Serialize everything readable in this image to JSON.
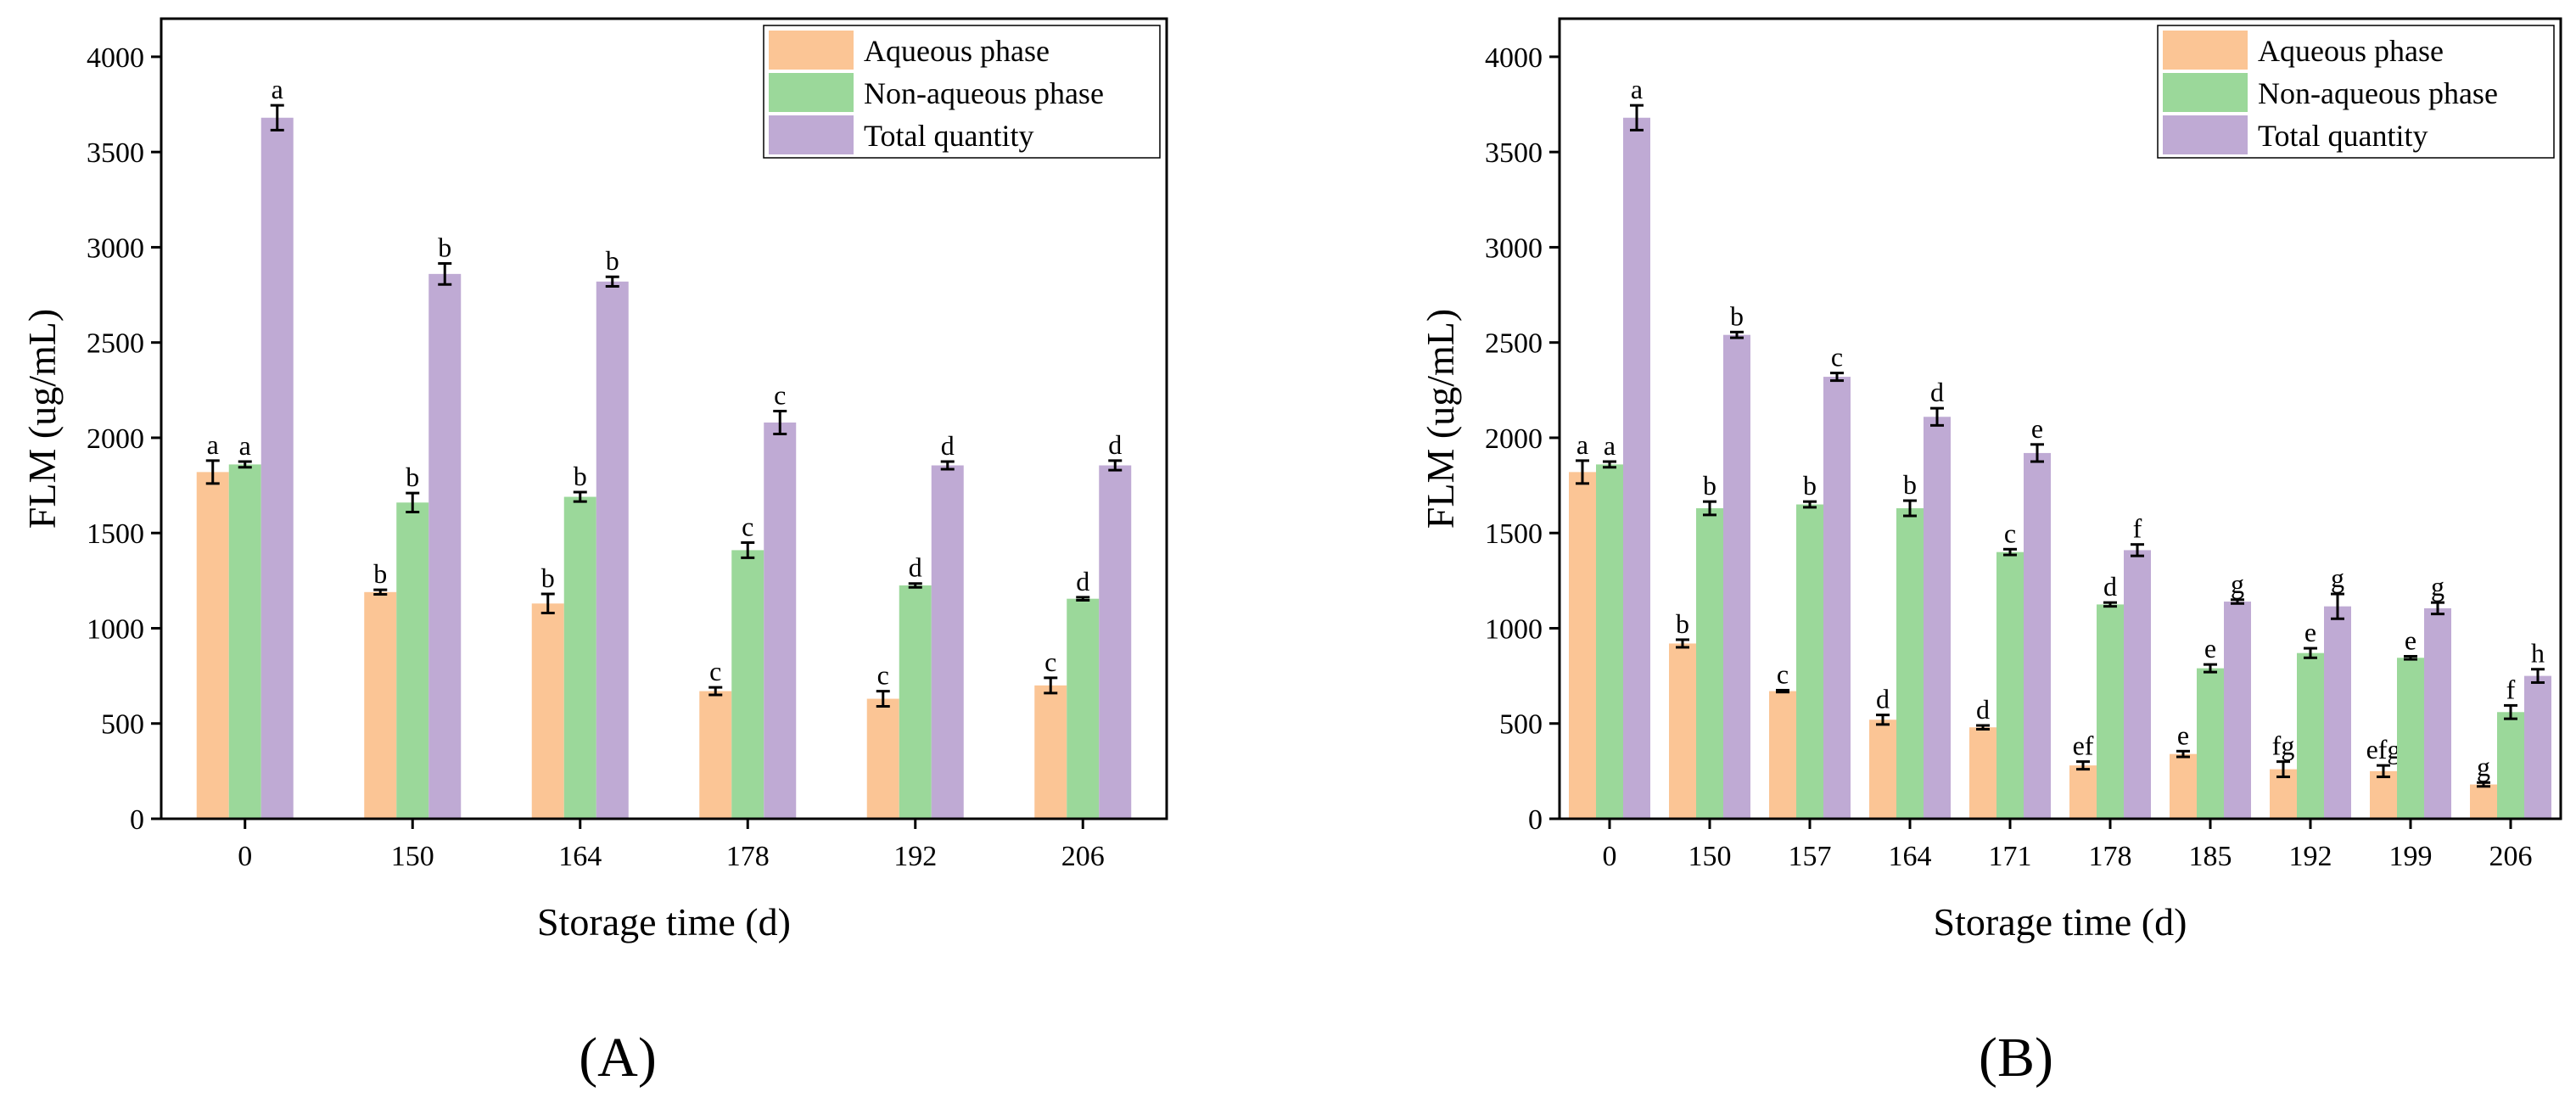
{
  "colors": {
    "aqueous": "#FBC595",
    "nonaqueous": "#9BD89A",
    "total": "#BFAAD4",
    "axis": "#000000",
    "error": "#000000"
  },
  "panels": [
    {
      "label": "(A)",
      "letter": "A"
    },
    {
      "label": "(B)",
      "letter": "B"
    }
  ],
  "chart_data": [
    {
      "type": "bar",
      "panel": "A",
      "xlabel": "Storage time (d)",
      "ylabel": "FLM (ug/mL)",
      "ylim": [
        0,
        4200
      ],
      "yticks": [
        0,
        500,
        1000,
        1500,
        2000,
        2500,
        3000,
        3500,
        4000
      ],
      "categories": [
        "0",
        "150",
        "164",
        "178",
        "192",
        "206"
      ],
      "legend_position": "top-right",
      "series": [
        {
          "name": "Aqueous phase",
          "color_key": "aqueous",
          "values": [
            1820,
            1190,
            1130,
            670,
            630,
            700
          ],
          "errors": [
            60,
            12,
            50,
            20,
            40,
            40
          ],
          "labels": [
            "a",
            "b",
            "b",
            "c",
            "c",
            "c"
          ]
        },
        {
          "name": "Non-aqueous phase",
          "color_key": "nonaqueous",
          "values": [
            1860,
            1660,
            1690,
            1410,
            1225,
            1155
          ],
          "errors": [
            15,
            50,
            25,
            40,
            10,
            8
          ],
          "labels": [
            "a",
            "b",
            "b",
            "c",
            "d",
            "d"
          ]
        },
        {
          "name": "Total quantity",
          "color_key": "total",
          "values": [
            3680,
            2860,
            2820,
            2080,
            1855,
            1855
          ],
          "errors": [
            65,
            55,
            25,
            60,
            20,
            25
          ],
          "labels": [
            "a",
            "b",
            "b",
            "c",
            "d",
            "d"
          ]
        }
      ]
    },
    {
      "type": "bar",
      "panel": "B",
      "xlabel": "Storage time (d)",
      "ylabel": "FLM (ug/mL)",
      "ylim": [
        0,
        4200
      ],
      "yticks": [
        0,
        500,
        1000,
        1500,
        2000,
        2500,
        3000,
        3500,
        4000
      ],
      "categories": [
        "0",
        "150",
        "157",
        "164",
        "171",
        "178",
        "185",
        "192",
        "199",
        "206"
      ],
      "legend_position": "top-right",
      "series": [
        {
          "name": "Aqueous phase",
          "color_key": "aqueous",
          "values": [
            1820,
            920,
            670,
            520,
            480,
            280,
            340,
            260,
            250,
            180
          ],
          "errors": [
            60,
            20,
            5,
            25,
            10,
            20,
            15,
            40,
            30,
            10
          ],
          "labels": [
            "a",
            "b",
            "c",
            "d",
            "d",
            "ef",
            "e",
            "fg",
            "efg",
            "g"
          ]
        },
        {
          "name": "Non-aqueous phase",
          "color_key": "nonaqueous",
          "values": [
            1860,
            1630,
            1650,
            1630,
            1400,
            1125,
            790,
            870,
            845,
            560
          ],
          "errors": [
            15,
            35,
            15,
            40,
            15,
            10,
            20,
            25,
            8,
            35
          ],
          "labels": [
            "a",
            "b",
            "b",
            "b",
            "c",
            "d",
            "e",
            "e",
            "e",
            "f"
          ]
        },
        {
          "name": "Total quantity",
          "color_key": "total",
          "values": [
            3680,
            2540,
            2320,
            2110,
            1920,
            1410,
            1140,
            1115,
            1105,
            750
          ],
          "errors": [
            65,
            15,
            20,
            45,
            45,
            30,
            10,
            65,
            30,
            35
          ],
          "labels": [
            "a",
            "b",
            "c",
            "d",
            "e",
            "f",
            "g",
            "g",
            "g",
            "h"
          ]
        }
      ]
    }
  ]
}
